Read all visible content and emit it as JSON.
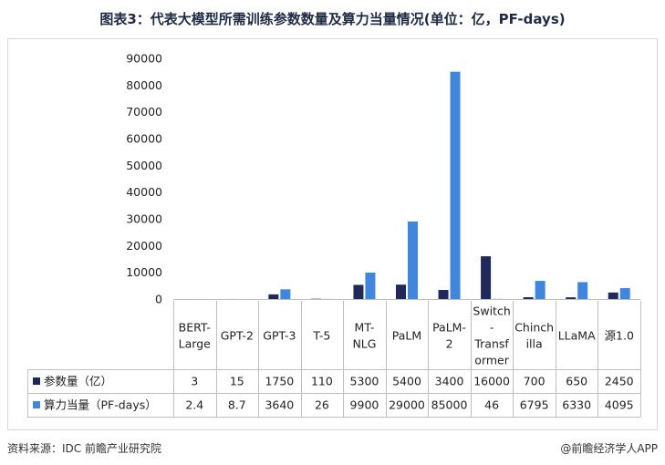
{
  "title": "图表3：代表大模型所需训练参数数量及算力当量情况(单位：亿，PF-days)",
  "source": "资料来源：IDC 前瞻产业研究院",
  "brand": "@前瞻经济学人APP",
  "chart_data": {
    "type": "bar",
    "categories": [
      "BERT-\nLarge",
      "GPT-2",
      "GPT-3",
      "T-5",
      "MT-\nNLG",
      "PaLM",
      "PaLM-\n2",
      "Switch\n-\nTransf\normer",
      "Chinch\nilla",
      "LLaMA",
      "源1.0"
    ],
    "series": [
      {
        "name": "参数量（亿）",
        "color": "#1f2a5a",
        "values": [
          3,
          15,
          1750,
          110,
          5300,
          5400,
          3400,
          16000,
          700,
          650,
          2450
        ],
        "labels": [
          "3",
          "15",
          "1750",
          "110",
          "5300",
          "5400",
          "3400",
          "16000",
          "700",
          "650",
          "2450"
        ]
      },
      {
        "name": "算力当量（PF-days）",
        "color": "#3f86dc",
        "values": [
          2.4,
          8.7,
          3640,
          26,
          9900,
          29000,
          85000,
          46,
          6795,
          6330,
          4095
        ],
        "labels": [
          "2.4",
          "8.7",
          "3640",
          "26",
          "9900",
          "29000",
          "85000",
          "46",
          "6795",
          "6330",
          "4095"
        ]
      }
    ],
    "ylim": [
      0,
      90000
    ],
    "yticks": [
      0,
      10000,
      20000,
      30000,
      40000,
      50000,
      60000,
      70000,
      80000,
      90000
    ],
    "grid": false,
    "legend": "data-table"
  }
}
